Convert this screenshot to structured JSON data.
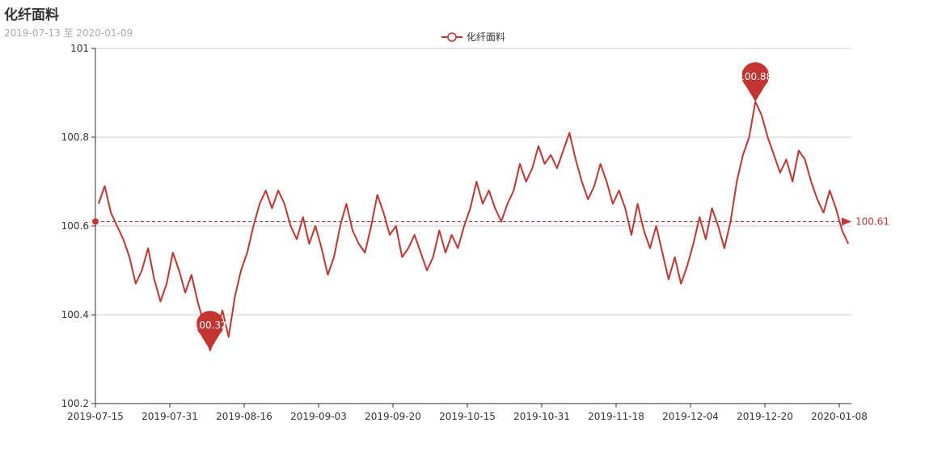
{
  "chart_data": {
    "type": "line",
    "title": "化纤面料",
    "subtitle": "2019-07-13 至 2020-01-09",
    "legend": [
      "化纤面料"
    ],
    "color": "#c23531",
    "ylim": [
      100.2,
      101
    ],
    "yticks": [
      "100.2",
      "100.4",
      "100.6",
      "100.8",
      "101"
    ],
    "xtick_labels": [
      "2019-07-15",
      "2019-07-31",
      "2019-08-16",
      "2019-09-03",
      "2019-09-20",
      "2019-10-15",
      "2019-10-31",
      "2019-11-18",
      "2019-12-04",
      "2019-12-20",
      "2020-01-08"
    ],
    "series": [
      {
        "name": "化纤面料",
        "values": [
          100.65,
          100.69,
          100.63,
          100.6,
          100.57,
          100.53,
          100.47,
          100.5,
          100.55,
          100.48,
          100.43,
          100.47,
          100.54,
          100.5,
          100.45,
          100.49,
          100.43,
          100.38,
          100.32,
          100.36,
          100.41,
          100.35,
          100.44,
          100.5,
          100.54,
          100.6,
          100.65,
          100.68,
          100.64,
          100.68,
          100.65,
          100.6,
          100.57,
          100.62,
          100.56,
          100.6,
          100.55,
          100.49,
          100.53,
          100.6,
          100.65,
          100.59,
          100.56,
          100.54,
          100.6,
          100.67,
          100.63,
          100.58,
          100.6,
          100.53,
          100.55,
          100.58,
          100.54,
          100.5,
          100.53,
          100.59,
          100.54,
          100.58,
          100.55,
          100.6,
          100.64,
          100.7,
          100.65,
          100.68,
          100.64,
          100.61,
          100.65,
          100.68,
          100.74,
          100.7,
          100.73,
          100.78,
          100.74,
          100.76,
          100.73,
          100.77,
          100.81,
          100.75,
          100.7,
          100.66,
          100.69,
          100.74,
          100.7,
          100.65,
          100.68,
          100.64,
          100.58,
          100.65,
          100.59,
          100.55,
          100.6,
          100.54,
          100.48,
          100.53,
          100.47,
          100.51,
          100.56,
          100.62,
          100.57,
          100.64,
          100.6,
          100.55,
          100.61,
          100.7,
          100.76,
          100.8,
          100.88,
          100.85,
          100.8,
          100.76,
          100.72,
          100.75,
          100.7,
          100.77,
          100.75,
          100.7,
          100.66,
          100.63,
          100.68,
          100.64,
          100.59,
          100.56
        ]
      }
    ],
    "max_marker": "100.88",
    "min_marker": "100.32",
    "average_label": "100.61",
    "average_value": 100.61
  }
}
